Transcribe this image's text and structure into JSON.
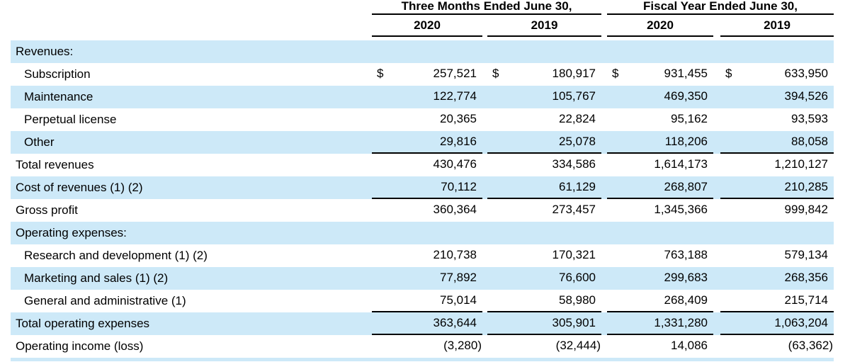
{
  "table": {
    "stripe_color": "#cde9f8",
    "rule_color": "#000000",
    "group_headers": [
      "Three Months Ended June 30,",
      "Fiscal Year Ended June 30,"
    ],
    "year_headers": [
      "2020",
      "2019",
      "2020",
      "2019"
    ],
    "rows": [
      {
        "label": "Revenues:",
        "indent": false,
        "striped": true,
        "underline": false,
        "dollar": "",
        "values": [
          "",
          "",
          "",
          ""
        ]
      },
      {
        "label": "Subscription",
        "indent": true,
        "striped": false,
        "underline": false,
        "dollar": "$",
        "values": [
          "257,521",
          "180,917",
          "931,455",
          "633,950"
        ]
      },
      {
        "label": "Maintenance",
        "indent": true,
        "striped": true,
        "underline": false,
        "dollar": "",
        "values": [
          "122,774",
          "105,767",
          "469,350",
          "394,526"
        ]
      },
      {
        "label": "Perpetual license",
        "indent": true,
        "striped": false,
        "underline": false,
        "dollar": "",
        "values": [
          "20,365",
          "22,824",
          "95,162",
          "93,593"
        ]
      },
      {
        "label": "Other",
        "indent": true,
        "striped": true,
        "underline": true,
        "dollar": "",
        "values": [
          "29,816",
          "25,078",
          "118,206",
          "88,058"
        ]
      },
      {
        "label": "Total revenues",
        "indent": false,
        "striped": false,
        "underline": false,
        "dollar": "",
        "values": [
          "430,476",
          "334,586",
          "1,614,173",
          "1,210,127"
        ]
      },
      {
        "label": "Cost of revenues (1) (2)",
        "indent": false,
        "striped": true,
        "underline": true,
        "dollar": "",
        "values": [
          "70,112",
          "61,129",
          "268,807",
          "210,285"
        ]
      },
      {
        "label": "Gross profit",
        "indent": false,
        "striped": false,
        "underline": false,
        "dollar": "",
        "values": [
          "360,364",
          "273,457",
          "1,345,366",
          "999,842"
        ]
      },
      {
        "label": "Operating expenses:",
        "indent": false,
        "striped": true,
        "underline": false,
        "dollar": "",
        "values": [
          "",
          "",
          "",
          ""
        ]
      },
      {
        "label": "Research and development (1) (2)",
        "indent": true,
        "striped": false,
        "underline": false,
        "dollar": "",
        "values": [
          "210,738",
          "170,321",
          "763,188",
          "579,134"
        ]
      },
      {
        "label": "Marketing and sales (1) (2)",
        "indent": true,
        "striped": true,
        "underline": false,
        "dollar": "",
        "values": [
          "77,892",
          "76,600",
          "299,683",
          "268,356"
        ]
      },
      {
        "label": "General and administrative (1)",
        "indent": true,
        "striped": false,
        "underline": true,
        "dollar": "",
        "values": [
          "75,014",
          "58,980",
          "268,409",
          "215,714"
        ]
      },
      {
        "label": "Total operating expenses",
        "indent": false,
        "striped": true,
        "underline": true,
        "dollar": "",
        "values": [
          "363,644",
          "305,901",
          "1,331,280",
          "1,063,204"
        ]
      },
      {
        "label": "Operating income (loss)",
        "indent": false,
        "striped": false,
        "underline": false,
        "dollar": "",
        "values": [
          "(3,280)",
          "(32,444)",
          "14,086",
          "(63,362)"
        ]
      }
    ]
  }
}
